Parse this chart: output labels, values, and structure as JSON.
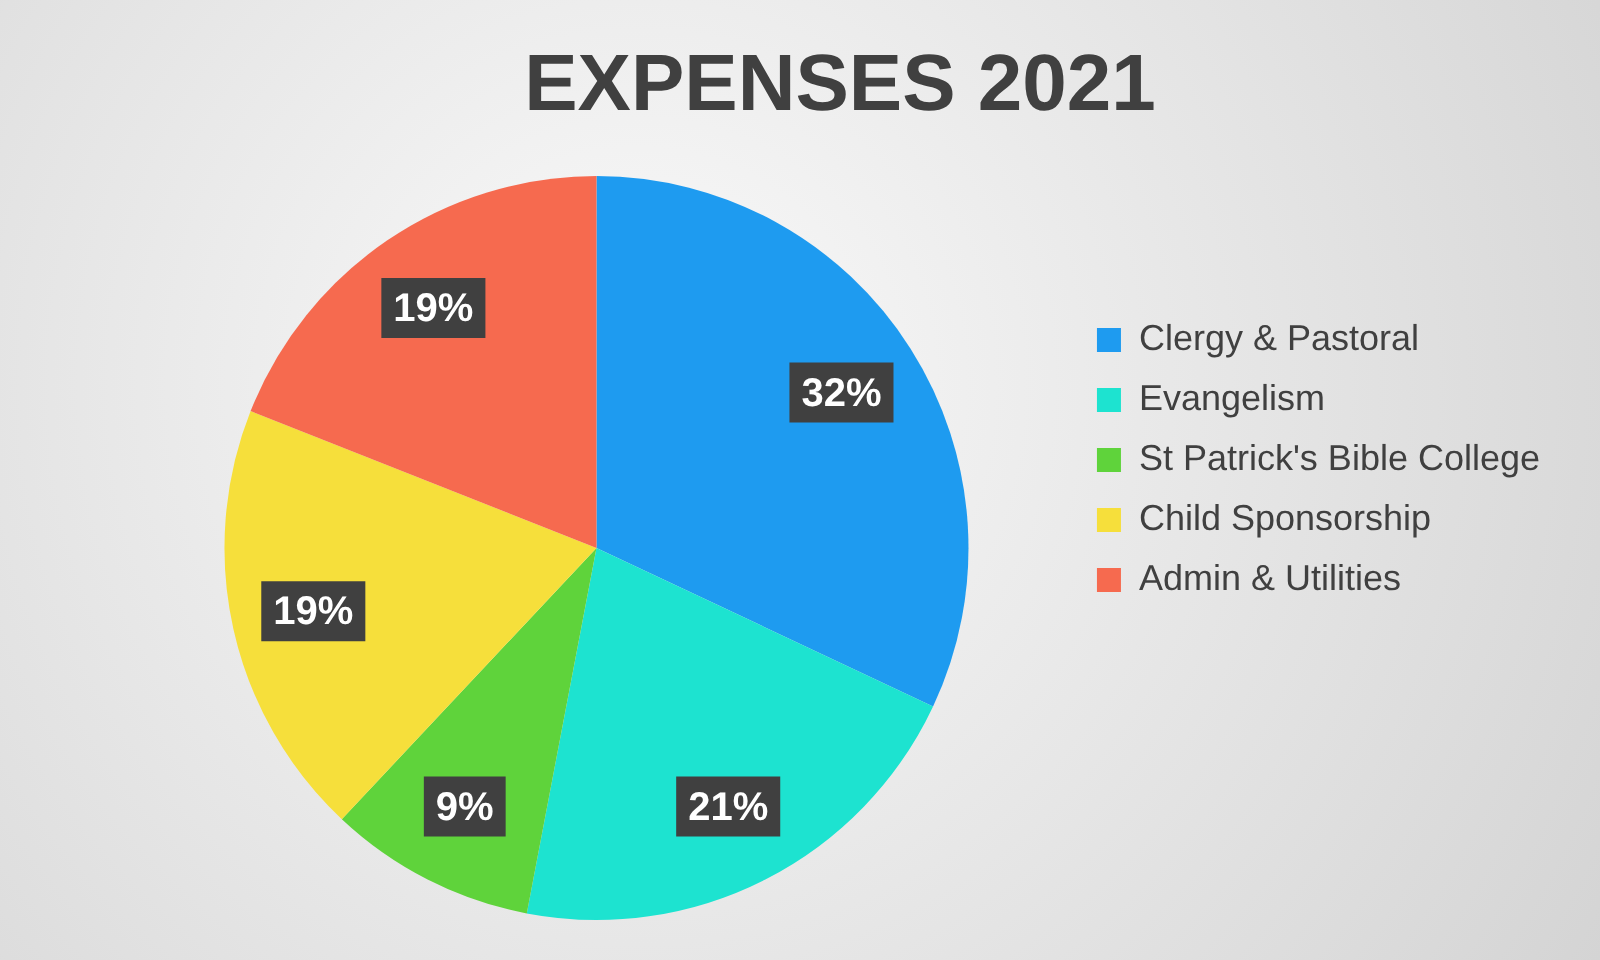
{
  "chart_data": {
    "type": "pie",
    "title": "EXPENSES 2021",
    "categories": [
      "Clergy & Pastoral",
      "Evangelism",
      "St Patrick's Bible College",
      "Child Sponsorship",
      "Admin & Utilities"
    ],
    "values": [
      32,
      21,
      9,
      19,
      19
    ],
    "colors": [
      "#1e9bf0",
      "#1de3d0",
      "#5fd33b",
      "#f6df3b",
      "#f66a4f"
    ],
    "value_labels": [
      "32%",
      "21%",
      "9%",
      "19%",
      "19%"
    ],
    "legend": "right"
  }
}
